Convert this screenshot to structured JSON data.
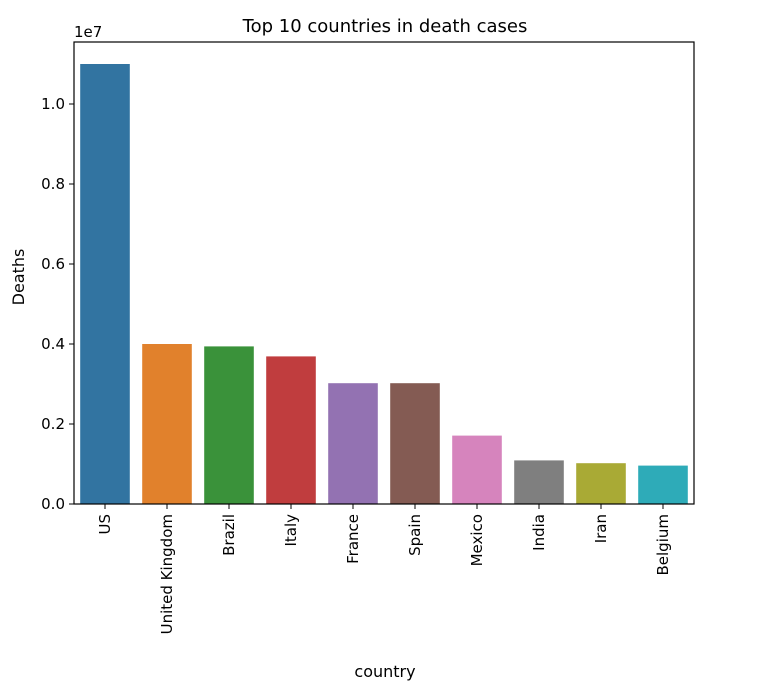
{
  "chart_data": {
    "type": "bar",
    "title": "Top 10 countries in death cases",
    "xlabel": "country",
    "ylabel": "Deaths",
    "y_offset_text": "1e7",
    "categories": [
      "US",
      "United Kingdom",
      "Brazil",
      "Italy",
      "France",
      "Spain",
      "Mexico",
      "India",
      "Iran",
      "Belgium"
    ],
    "values": [
      11000000,
      4000000,
      3940000,
      3690000,
      3020000,
      3020000,
      1710000,
      1090000,
      1020000,
      960000
    ],
    "colors": [
      "#3274a1",
      "#e1812c",
      "#3a923a",
      "#c03d3e",
      "#9372b2",
      "#845b53",
      "#d684bd",
      "#7f7f7f",
      "#a9aa35",
      "#2eabb8"
    ],
    "y_ticks": [
      0.0,
      0.2,
      0.4,
      0.6,
      0.8,
      1.0
    ],
    "y_tick_labels": [
      "0.0",
      "0.2",
      "0.4",
      "0.6",
      "0.8",
      "1.0"
    ],
    "y_tick_scale": 10000000,
    "ylim": [
      0,
      11550000
    ],
    "grid": false,
    "legend": "none"
  }
}
